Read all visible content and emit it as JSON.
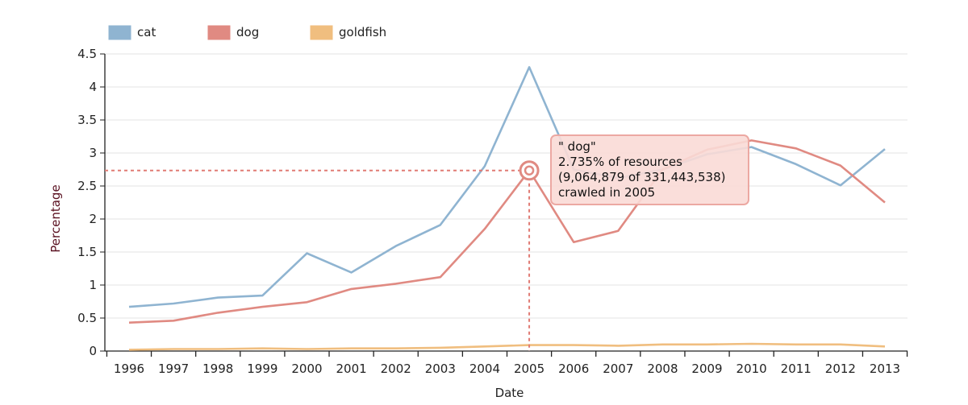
{
  "chart_data": {
    "type": "line",
    "xlabel": "Date",
    "ylabel": "Percentage",
    "ylim": [
      0,
      4.5
    ],
    "yticks": [
      "0",
      "0.5",
      "1",
      "1.5",
      "2",
      "2.5",
      "3",
      "3.5",
      "4",
      "4.5"
    ],
    "categories": [
      "1996",
      "1997",
      "1998",
      "1999",
      "2000",
      "2001",
      "2002",
      "2003",
      "2004",
      "2005",
      "2006",
      "2007",
      "2008",
      "2009",
      "2010",
      "2011",
      "2012",
      "2013"
    ],
    "series": [
      {
        "name": "cat",
        "color": "#8fb4d1",
        "values": [
          0.67,
          0.72,
          0.81,
          0.84,
          1.48,
          1.19,
          1.59,
          1.91,
          2.8,
          4.3,
          2.75,
          2.62,
          2.75,
          2.98,
          3.09,
          2.83,
          2.51,
          3.06
        ]
      },
      {
        "name": "dog",
        "color": "#e08a82",
        "values": [
          0.43,
          0.46,
          0.58,
          0.67,
          0.74,
          0.94,
          1.02,
          1.12,
          1.85,
          2.735,
          1.65,
          1.82,
          2.75,
          3.05,
          3.19,
          3.07,
          2.81,
          2.25
        ]
      },
      {
        "name": "goldfish",
        "color": "#f0be7f",
        "values": [
          0.02,
          0.03,
          0.03,
          0.04,
          0.03,
          0.04,
          0.04,
          0.05,
          0.07,
          0.09,
          0.09,
          0.08,
          0.1,
          0.1,
          0.11,
          0.1,
          0.1,
          0.07
        ]
      }
    ],
    "legend_placement": "top-left",
    "grid": "horizontal",
    "highlight": {
      "series": "dog",
      "x": "2005",
      "y": 2.735
    },
    "tooltip": {
      "line1": "\" dog\"",
      "line2": "2.735% of resources",
      "line3": "(9,064,879 of 331,443,538)",
      "line4": "crawled in 2005"
    }
  }
}
